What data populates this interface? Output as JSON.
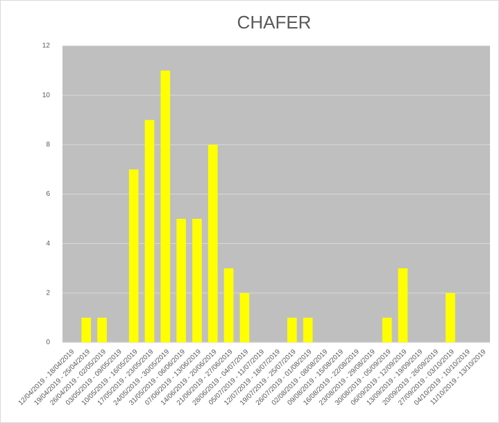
{
  "chart_data": {
    "type": "bar",
    "title": "CHAFER",
    "categories": [
      "12/04/2019 - 18/04/2019",
      "19/04/2019 - 25/04/2019",
      "26/04/2019 - 02/05/2019",
      "03/05/2019 - 09/05/2019",
      "10/05/2019 - 16/05/2019",
      "17/05/2019 - 23/05/2019",
      "24/05/2019 - 30/05/2019",
      "31/05/2019 - 06/06/2019",
      "07/06/2019 - 13/06/2019",
      "14/06/2019 - 20/06/2019",
      "21/06/2019 - 27/06/2019",
      "28/06/2019 - 04/07/2019",
      "05/07/2019 - 11/07/2019",
      "12/07/2019 - 18/07/2019",
      "19/07/2019 - 25/07/2019",
      "26/07/2019 - 01/08/2019",
      "02/08/2019 - 08/08/2019",
      "09/08/2019 - 15/08/2019",
      "16/08/2019 - 22/08/2019",
      "23/08/2019 - 29/08/2019",
      "30/08/2019 - 05/09/2019",
      "06/09/2019 - 12/09/2019",
      "13/09/2019 - 19/09/2019",
      "20/09/2019 - 26/09/2019",
      "27/09/2019 - 03/10/2019",
      "04/10/2019 - 10/10/2019",
      "11/10/2019 - 13/10/2019"
    ],
    "values": [
      0,
      1,
      1,
      0,
      7,
      9,
      11,
      5,
      5,
      8,
      3,
      2,
      0,
      0,
      1,
      1,
      0,
      0,
      0,
      0,
      1,
      3,
      0,
      0,
      2,
      0,
      0
    ],
    "color": "#ffff00",
    "ylim": [
      0,
      12
    ],
    "yticks": [
      0,
      2,
      4,
      6,
      8,
      10,
      12
    ],
    "grid": true
  }
}
